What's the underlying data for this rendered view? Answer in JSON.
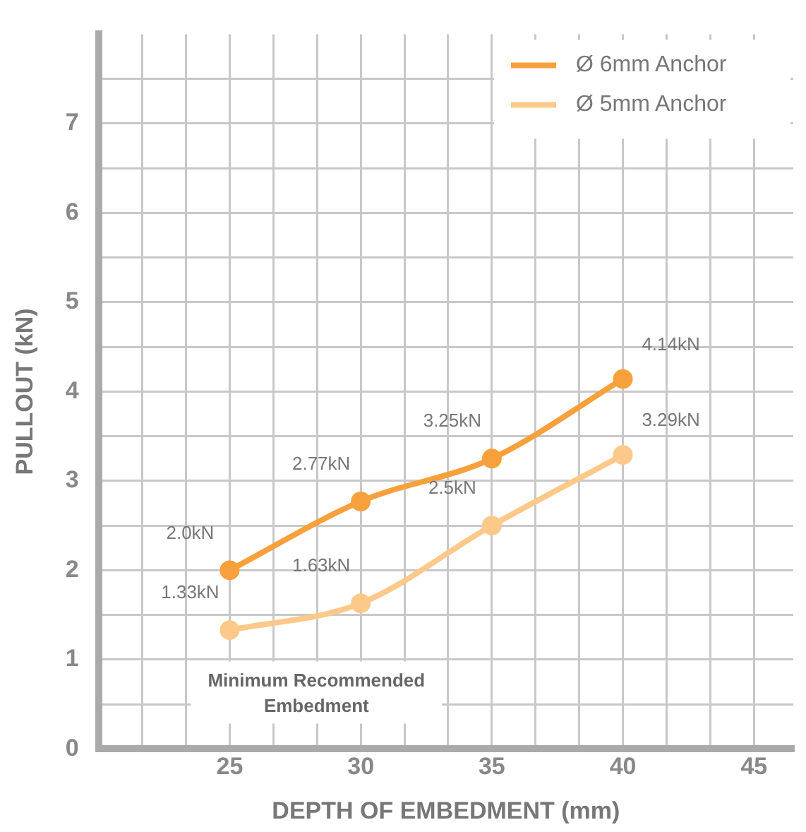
{
  "chart_data": {
    "type": "line",
    "xlabel": "DEPTH OF EMBEDMENT (mm)",
    "ylabel": "PULLOUT (kN)",
    "x": [
      25,
      30,
      35,
      40
    ],
    "series": [
      {
        "name": "Ø 6mm Anchor",
        "color": "#f7a03c",
        "values": [
          2.0,
          2.77,
          3.25,
          4.14
        ],
        "value_labels": [
          "2.0kN",
          "2.77kN",
          "3.25kN",
          "4.14kN"
        ]
      },
      {
        "name": "Ø 5mm Anchor",
        "color": "#fdc98a",
        "values": [
          1.33,
          1.63,
          2.5,
          3.29
        ],
        "value_labels": [
          "1.33kN",
          "1.63kN",
          "2.5kN",
          "3.29kN"
        ]
      }
    ],
    "xlim": [
      20,
      46.5
    ],
    "xticks": [
      {
        "value": 21.67,
        "label": null
      },
      {
        "value": 23.33,
        "label": null
      },
      25,
      {
        "value": 26.67,
        "label": null
      },
      {
        "value": 28.33,
        "label": null
      },
      30,
      {
        "value": 31.67,
        "label": null
      },
      {
        "value": 33.33,
        "label": null
      },
      35,
      {
        "value": 36.67,
        "label": null
      },
      {
        "value": 38.33,
        "label": null
      },
      40,
      {
        "value": 41.67,
        "label": null
      },
      {
        "value": 43.33,
        "label": null
      },
      45
    ],
    "ylim": [
      0,
      8
    ],
    "yticks": [
      0,
      {
        "value": 0.5,
        "label": null
      },
      1,
      {
        "value": 1.5,
        "label": null
      },
      2,
      {
        "value": 2.5,
        "label": null
      },
      3,
      {
        "value": 3.5,
        "label": null
      },
      4,
      {
        "value": 4.5,
        "label": null
      },
      5,
      {
        "value": 5.5,
        "label": null
      },
      6,
      {
        "value": 6.5,
        "label": null
      },
      7,
      {
        "value": 7.5,
        "label": null
      }
    ],
    "annotations": [
      "Minimum Recommended Embedment"
    ],
    "grid": true,
    "legend": "top right",
    "marker": "circle",
    "line_style": "solid"
  }
}
